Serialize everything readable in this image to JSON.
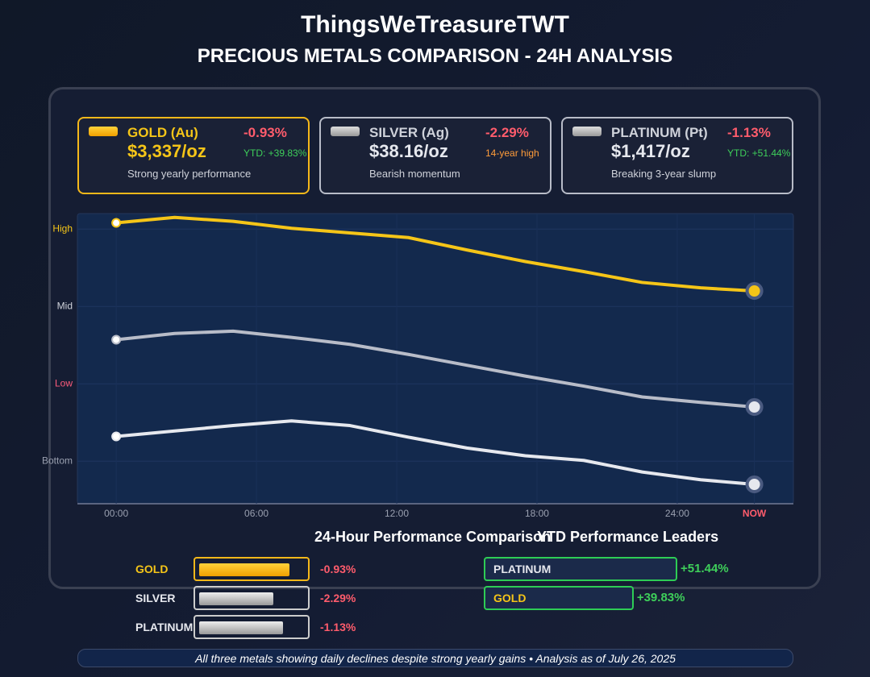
{
  "header": {
    "brand": "ThingsWeTreasureTWT",
    "title": "PRECIOUS METALS COMPARISON - 24H ANALYSIS"
  },
  "cards": [
    {
      "name": "GOLD (Au)",
      "change": "-0.93%",
      "price": "$3,337/oz",
      "detail": "YTD: +39.83%",
      "note": "Strong yearly performance"
    },
    {
      "name": "SILVER (Ag)",
      "change": "-2.29%",
      "price": "$38.16/oz",
      "detail": "14-year high",
      "note": "Bearish momentum"
    },
    {
      "name": "PLATINUM (Pt)",
      "change": "-1.13%",
      "price": "$1,417/oz",
      "detail": "YTD: +51.44%",
      "note": "Breaking 3-year slump"
    }
  ],
  "chart_data": {
    "type": "line",
    "x": [
      0,
      2.5,
      5,
      7.5,
      10,
      12.5,
      15,
      17.5,
      20,
      22.5,
      25,
      27.3
    ],
    "xlim": [
      -1.66,
      28.97
    ],
    "xticks": [
      {
        "value": 0,
        "label": "00:00"
      },
      {
        "value": 6,
        "label": "06:00"
      },
      {
        "value": 12,
        "label": "12:00"
      },
      {
        "value": 18,
        "label": "18:00"
      },
      {
        "value": 24,
        "label": "24:00"
      },
      {
        "value": 27.3,
        "label": "NOW"
      }
    ],
    "ylim": [
      -0.55,
      3.2
    ],
    "yticks": [
      {
        "value": 3,
        "label": "High"
      },
      {
        "value": 2,
        "label": "Mid"
      },
      {
        "value": 1,
        "label": "Low"
      },
      {
        "value": 0,
        "label": "Bottom"
      }
    ],
    "grid": true,
    "series": [
      {
        "name": "GOLD",
        "color": "#f5c518",
        "values": [
          3.08,
          3.15,
          3.1,
          3.01,
          2.95,
          2.89,
          2.73,
          2.58,
          2.45,
          2.31,
          2.24,
          2.2
        ]
      },
      {
        "name": "SILVER",
        "color": "#b8bcc8",
        "values": [
          1.57,
          1.65,
          1.68,
          1.6,
          1.51,
          1.38,
          1.24,
          1.1,
          0.97,
          0.83,
          0.76,
          0.7
        ]
      },
      {
        "name": "PLATINUM",
        "color": "#e6e8ee",
        "values": [
          0.32,
          0.39,
          0.46,
          0.52,
          0.46,
          0.31,
          0.17,
          0.07,
          0.01,
          -0.14,
          -0.24,
          -0.3
        ]
      }
    ]
  },
  "performance_24h": {
    "title": "24-Hour Performance Comparison",
    "rows": [
      {
        "name": "GOLD",
        "change": "-0.93%"
      },
      {
        "name": "SILVER",
        "change": "-2.29%"
      },
      {
        "name": "PLATINUM",
        "change": "-1.13%"
      }
    ]
  },
  "ytd_leaders": {
    "title": "YTD Performance Leaders",
    "rows": [
      {
        "name": "PLATINUM",
        "value": 51.44,
        "label": "+51.44%"
      },
      {
        "name": "GOLD",
        "value": 39.83,
        "label": "+39.83%"
      }
    ]
  },
  "footer": "All three metals showing daily declines despite strong yearly gains • Analysis as of July 26, 2025"
}
